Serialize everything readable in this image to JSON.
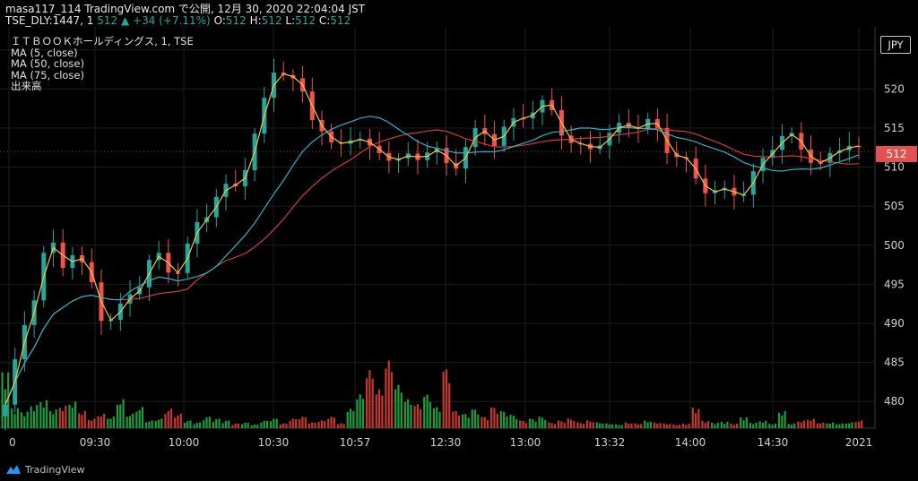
{
  "header": {
    "line1": "masa117_114 TradingView.com で公開, 12月 30, 2020 22:04:04 JST",
    "symbol_prefix": "TSE_DLY:1447, 1 ",
    "last": "512",
    "up_arrow": "▲",
    "change": "+34 (+7.11%)",
    "o_label": "O:",
    "o_value": "512",
    "h_label": "H:",
    "h_value": "512",
    "l_label": "L:",
    "l_value": "512",
    "c_label": "C:",
    "c_value": "512"
  },
  "legend": {
    "title": "ＩＴＢＯＯＫホールディングス, 1, TSE",
    "ma5": "MA (5, close)",
    "ma50": "MA (50, close)",
    "ma75": "MA (75, close)",
    "volume": "出来高"
  },
  "axis": {
    "currency": "JPY",
    "last_price_label": "512"
  },
  "branding": {
    "name": "TradingView"
  },
  "colors": {
    "up": "#26a69a",
    "down": "#ef5350",
    "ma5": "#f5c342",
    "ma50": "#2ab2c9",
    "ma75": "#d43a3a",
    "vol_up": "#1b9e3e",
    "vol_down": "#c8372f",
    "grid": "#1d1d1d"
  },
  "chart_data": {
    "type": "candlestick",
    "title": "ＩＴＢＯＯＫホールディングス, 1, TSE",
    "y_ticks": [
      480,
      485,
      490,
      495,
      500,
      505,
      510,
      515,
      520,
      525
    ],
    "ylim": [
      475.2,
      527.5
    ],
    "last_price": 512,
    "x_ticks": [
      "0",
      "09:30",
      "10:00",
      "10:30",
      "10:57",
      "12:30",
      "13:00",
      "13:32",
      "14:00",
      "14:30",
      "2021"
    ],
    "price_path": [
      [
        0,
        479
      ],
      [
        4,
        484
      ],
      [
        8,
        490
      ],
      [
        12,
        494
      ],
      [
        16,
        499
      ],
      [
        20,
        500
      ],
      [
        24,
        497
      ],
      [
        28,
        499
      ],
      [
        32,
        497
      ],
      [
        36,
        496
      ],
      [
        40,
        492
      ],
      [
        44,
        491
      ],
      [
        48,
        491
      ],
      [
        52,
        493
      ],
      [
        56,
        494
      ],
      [
        60,
        497
      ],
      [
        64,
        499
      ],
      [
        68,
        498
      ],
      [
        72,
        497
      ],
      [
        76,
        498
      ],
      [
        80,
        501
      ],
      [
        84,
        503
      ],
      [
        88,
        505
      ],
      [
        92,
        508
      ],
      [
        96,
        507
      ],
      [
        100,
        509
      ],
      [
        104,
        512
      ],
      [
        108,
        515
      ],
      [
        112,
        519
      ],
      [
        116,
        524
      ],
      [
        120,
        522
      ],
      [
        124,
        521
      ],
      [
        128,
        519
      ],
      [
        132,
        516
      ],
      [
        136,
        514
      ],
      [
        140,
        511
      ],
      [
        144,
        513
      ],
      [
        148,
        515
      ],
      [
        152,
        514
      ],
      [
        156,
        512
      ],
      [
        160,
        512
      ],
      [
        164,
        511
      ],
      [
        168,
        510
      ],
      [
        172,
        511
      ],
      [
        176,
        512
      ],
      [
        180,
        513
      ],
      [
        184,
        512
      ],
      [
        188,
        510
      ],
      [
        192,
        510
      ],
      [
        196,
        512
      ],
      [
        200,
        514
      ],
      [
        204,
        515
      ],
      [
        208,
        514
      ],
      [
        212,
        515
      ],
      [
        216,
        515
      ],
      [
        220,
        516
      ],
      [
        224,
        517
      ],
      [
        228,
        518
      ],
      [
        232,
        518
      ],
      [
        236,
        516
      ],
      [
        240,
        514
      ],
      [
        244,
        512
      ],
      [
        248,
        511
      ],
      [
        252,
        513
      ],
      [
        256,
        514
      ],
      [
        260,
        515
      ],
      [
        264,
        516
      ],
      [
        268,
        516
      ],
      [
        272,
        515
      ],
      [
        276,
        515
      ],
      [
        280,
        513
      ],
      [
        284,
        512
      ],
      [
        288,
        512
      ],
      [
        292,
        510
      ],
      [
        296,
        508
      ],
      [
        300,
        507
      ],
      [
        304,
        506
      ],
      [
        308,
        506
      ],
      [
        312,
        507
      ],
      [
        316,
        508
      ],
      [
        320,
        510
      ],
      [
        324,
        511
      ],
      [
        328,
        513
      ],
      [
        332,
        514
      ],
      [
        336,
        513
      ],
      [
        340,
        512
      ],
      [
        344,
        512
      ],
      [
        348,
        511
      ],
      [
        352,
        511
      ],
      [
        356,
        512
      ],
      [
        360,
        513
      ],
      [
        364,
        512
      ]
    ],
    "volume_heights": [
      0.62,
      0.22,
      0.18,
      0.25,
      0.3,
      0.2,
      0.24,
      0.28,
      0.18,
      0.1,
      0.15,
      0.12,
      0.3,
      0.15,
      0.22,
      0.08,
      0.1,
      0.2,
      0.15,
      0.08,
      0.06,
      0.12,
      0.1,
      0.08,
      0.05,
      0.06,
      0.04,
      0.08,
      0.1,
      0.05,
      0.1,
      0.12,
      0.06,
      0.08,
      0.12,
      0.05,
      0.2,
      0.35,
      0.6,
      0.4,
      0.7,
      0.45,
      0.3,
      0.25,
      0.35,
      0.22,
      0.62,
      0.18,
      0.15,
      0.2,
      0.12,
      0.22,
      0.18,
      0.14,
      0.08,
      0.1,
      0.12,
      0.06,
      0.08,
      0.1,
      0.06,
      0.08,
      0.06,
      0.05,
      0.04,
      0.06,
      0.05,
      0.08,
      0.06,
      0.05,
      0.04,
      0.05,
      0.22,
      0.08,
      0.06,
      0.07,
      0.05,
      0.12,
      0.06,
      0.08,
      0.05,
      0.18,
      0.05,
      0.08,
      0.1,
      0.06,
      0.06,
      0.05,
      0.06,
      0.08,
      0.05,
      0.06
    ]
  }
}
